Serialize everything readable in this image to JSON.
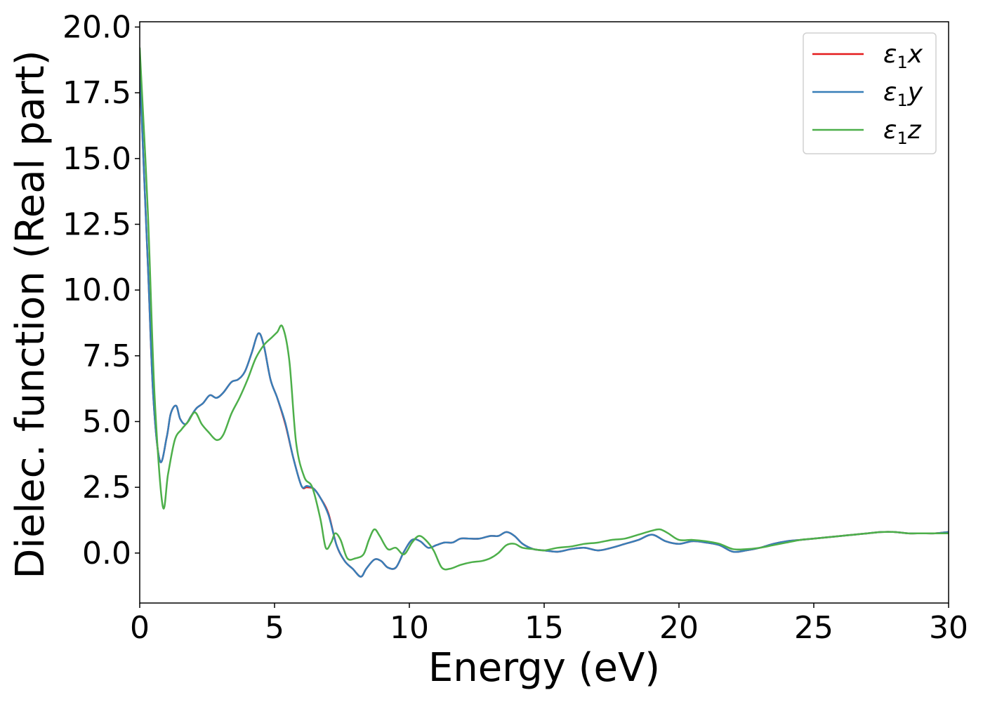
{
  "chart_data": {
    "type": "line",
    "title": "",
    "xlabel": "Energy (eV)",
    "ylabel": "Dielec. function (Real part)",
    "xlim": [
      0,
      30
    ],
    "ylim": [
      -1.9,
      20.2
    ],
    "xticks": [
      0,
      5,
      10,
      15,
      20,
      25,
      30
    ],
    "xtick_labels": [
      "0",
      "5",
      "10",
      "15",
      "20",
      "25",
      "30"
    ],
    "yticks": [
      0.0,
      2.5,
      5.0,
      7.5,
      10.0,
      12.5,
      15.0,
      17.5,
      20.0
    ],
    "ytick_labels": [
      "0.0",
      "2.5",
      "5.0",
      "7.5",
      "10.0",
      "12.5",
      "15.0",
      "17.5",
      "20.0"
    ],
    "grid": false,
    "legend_position": "top-right",
    "series": [
      {
        "name": "ε1x",
        "symbol": "ε",
        "sub": "1",
        "axis": "x",
        "color": "#e41a1c",
        "x": [
          0,
          0.3,
          0.5,
          0.75,
          1.0,
          1.15,
          1.35,
          1.5,
          1.7,
          1.9,
          2.1,
          2.35,
          2.6,
          2.85,
          3.1,
          3.4,
          3.65,
          3.9,
          4.15,
          4.4,
          4.6,
          4.85,
          5.1,
          5.4,
          5.7,
          6.0,
          6.2,
          6.45,
          6.7,
          7.0,
          7.3,
          7.6,
          7.9,
          8.2,
          8.4,
          8.7,
          8.95,
          9.2,
          9.5,
          9.8,
          10.1,
          10.4,
          10.7,
          11.0,
          11.3,
          11.6,
          11.9,
          12.2,
          12.6,
          13.0,
          13.3,
          13.6,
          13.9,
          14.2,
          14.6,
          15.0,
          15.5,
          16.0,
          16.5,
          17.0,
          17.5,
          18.0,
          18.5,
          19.0,
          19.5,
          20.0,
          20.5,
          21.0,
          21.5,
          22.0,
          22.5,
          23.0,
          23.5,
          24.0,
          24.5,
          25.0,
          25.5,
          26.0,
          26.5,
          27.0,
          27.5,
          28.0,
          28.5,
          29.0,
          29.5,
          30.0
        ],
        "y": [
          18.3,
          11.0,
          6.0,
          3.5,
          4.4,
          5.3,
          5.6,
          5.1,
          4.9,
          5.2,
          5.5,
          5.7,
          6.0,
          5.9,
          6.1,
          6.5,
          6.6,
          6.9,
          7.6,
          8.35,
          7.9,
          6.6,
          5.9,
          4.9,
          3.6,
          2.55,
          2.5,
          2.45,
          2.1,
          1.5,
          0.3,
          -0.3,
          -0.6,
          -0.9,
          -0.6,
          -0.25,
          -0.3,
          -0.55,
          -0.55,
          0.05,
          0.5,
          0.45,
          0.2,
          0.3,
          0.4,
          0.4,
          0.55,
          0.55,
          0.55,
          0.65,
          0.65,
          0.8,
          0.65,
          0.35,
          0.15,
          0.1,
          0.05,
          0.15,
          0.2,
          0.1,
          0.2,
          0.35,
          0.5,
          0.7,
          0.45,
          0.35,
          0.45,
          0.4,
          0.3,
          0.05,
          0.1,
          0.2,
          0.35,
          0.45,
          0.5,
          0.55,
          0.6,
          0.65,
          0.7,
          0.75,
          0.8,
          0.8,
          0.75,
          0.75,
          0.75,
          0.8
        ]
      },
      {
        "name": "ε1y",
        "symbol": "ε",
        "sub": "1",
        "axis": "y",
        "color": "#377eb8",
        "x": [
          0,
          0.3,
          0.5,
          0.75,
          1.0,
          1.15,
          1.35,
          1.5,
          1.7,
          1.9,
          2.1,
          2.35,
          2.6,
          2.85,
          3.1,
          3.4,
          3.65,
          3.9,
          4.15,
          4.4,
          4.6,
          4.85,
          5.1,
          5.4,
          5.7,
          6.0,
          6.2,
          6.45,
          6.7,
          7.0,
          7.3,
          7.6,
          7.9,
          8.2,
          8.4,
          8.7,
          8.95,
          9.2,
          9.5,
          9.8,
          10.1,
          10.4,
          10.7,
          11.0,
          11.3,
          11.6,
          11.9,
          12.2,
          12.6,
          13.0,
          13.3,
          13.6,
          13.9,
          14.2,
          14.6,
          15.0,
          15.5,
          16.0,
          16.5,
          17.0,
          17.5,
          18.0,
          18.5,
          19.0,
          19.5,
          20.0,
          20.5,
          21.0,
          21.5,
          22.0,
          22.5,
          23.0,
          23.5,
          24.0,
          24.5,
          25.0,
          25.5,
          26.0,
          26.5,
          27.0,
          27.5,
          28.0,
          28.5,
          29.0,
          29.5,
          30.0
        ],
        "y": [
          18.3,
          11.0,
          6.0,
          3.5,
          4.4,
          5.3,
          5.6,
          5.1,
          4.9,
          5.2,
          5.5,
          5.7,
          6.0,
          5.9,
          6.1,
          6.5,
          6.6,
          6.9,
          7.6,
          8.35,
          7.9,
          6.6,
          5.9,
          4.95,
          3.6,
          2.55,
          2.55,
          2.45,
          2.1,
          1.45,
          0.3,
          -0.3,
          -0.6,
          -0.9,
          -0.6,
          -0.25,
          -0.3,
          -0.55,
          -0.55,
          0.05,
          0.5,
          0.45,
          0.2,
          0.3,
          0.4,
          0.4,
          0.55,
          0.55,
          0.55,
          0.65,
          0.65,
          0.8,
          0.65,
          0.35,
          0.15,
          0.1,
          0.05,
          0.15,
          0.2,
          0.1,
          0.2,
          0.35,
          0.5,
          0.7,
          0.45,
          0.35,
          0.45,
          0.4,
          0.3,
          0.05,
          0.1,
          0.2,
          0.35,
          0.45,
          0.5,
          0.55,
          0.6,
          0.65,
          0.7,
          0.75,
          0.8,
          0.8,
          0.75,
          0.75,
          0.75,
          0.8
        ]
      },
      {
        "name": "ε1z",
        "symbol": "ε",
        "sub": "1",
        "axis": "z",
        "color": "#4daf4a",
        "x": [
          0,
          0.3,
          0.55,
          0.85,
          1.05,
          1.3,
          1.55,
          1.8,
          2.05,
          2.3,
          2.55,
          2.85,
          3.1,
          3.4,
          3.7,
          4.0,
          4.3,
          4.6,
          4.9,
          5.1,
          5.3,
          5.55,
          5.8,
          6.1,
          6.4,
          6.7,
          6.9,
          7.1,
          7.25,
          7.45,
          7.7,
          8.0,
          8.3,
          8.5,
          8.7,
          8.9,
          9.2,
          9.5,
          9.8,
          10.1,
          10.35,
          10.6,
          10.9,
          11.2,
          11.5,
          11.9,
          12.3,
          12.7,
          13.0,
          13.3,
          13.6,
          13.9,
          14.2,
          14.6,
          15.0,
          15.5,
          16.0,
          16.5,
          17.0,
          17.5,
          18.0,
          18.5,
          19.0,
          19.3,
          19.6,
          20.0,
          20.5,
          21.0,
          21.5,
          22.0,
          22.5,
          23.0,
          23.5,
          24.0,
          24.5,
          25.0,
          25.5,
          26.0,
          26.5,
          27.0,
          27.5,
          28.0,
          28.5,
          29.0,
          29.5,
          30.0
        ],
        "y": [
          19.2,
          13.0,
          6.0,
          1.8,
          3.0,
          4.3,
          4.7,
          5.0,
          5.35,
          4.9,
          4.6,
          4.3,
          4.5,
          5.3,
          5.9,
          6.6,
          7.4,
          7.9,
          8.2,
          8.4,
          8.6,
          7.3,
          4.2,
          2.9,
          2.5,
          1.3,
          0.2,
          0.4,
          0.75,
          0.5,
          -0.2,
          -0.2,
          -0.05,
          0.5,
          0.9,
          0.65,
          0.15,
          0.2,
          -0.05,
          0.4,
          0.65,
          0.5,
          0.1,
          -0.55,
          -0.6,
          -0.45,
          -0.35,
          -0.3,
          -0.2,
          0.0,
          0.3,
          0.35,
          0.2,
          0.15,
          0.1,
          0.2,
          0.25,
          0.35,
          0.4,
          0.5,
          0.55,
          0.7,
          0.85,
          0.9,
          0.75,
          0.5,
          0.5,
          0.45,
          0.35,
          0.15,
          0.15,
          0.2,
          0.3,
          0.4,
          0.5,
          0.55,
          0.6,
          0.65,
          0.7,
          0.75,
          0.8,
          0.8,
          0.75,
          0.75,
          0.75,
          0.75
        ]
      }
    ]
  }
}
